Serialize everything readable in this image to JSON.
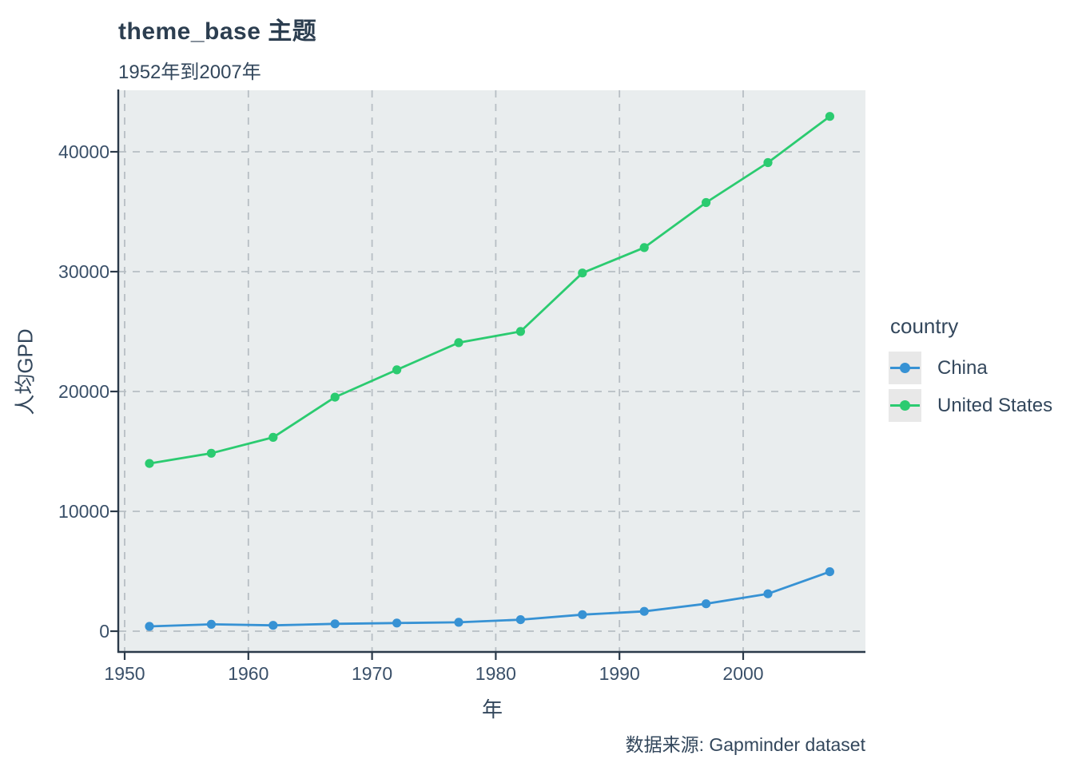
{
  "title": "theme_base 主题",
  "subtitle": "1952年到2007年",
  "caption": "数据来源: Gapminder dataset",
  "axes": {
    "x_label": "年",
    "y_label": "人均GPD"
  },
  "legend": {
    "title": "country",
    "items": [
      {
        "label": "China",
        "color": "#3792D4"
      },
      {
        "label": "United States",
        "color": "#2BCB70"
      }
    ]
  },
  "colors": {
    "title_text": "#2C3E50",
    "body_text": "#33475C",
    "tick_text": "#3A5069",
    "axis_line": "#2B3A4A",
    "gridline": "#B7BEC4",
    "panel_background": "#E9EDEE",
    "legend_key_background": "#E8E8E8",
    "china_series": "#3792D4",
    "us_series": "#2BCB70"
  },
  "chart_data": {
    "type": "line",
    "title": "theme_base 主题",
    "subtitle": "1952年到2007年",
    "caption": "数据来源: Gapminder dataset",
    "xlabel": "年",
    "ylabel": "人均GPD",
    "x": [
      1952,
      1957,
      1962,
      1967,
      1972,
      1977,
      1982,
      1987,
      1992,
      1997,
      2002,
      2007
    ],
    "series": [
      {
        "name": "China",
        "color": "#3792D4",
        "values": [
          400,
          576,
          488,
          613,
          677,
          741,
          962,
          1379,
          1656,
          2289,
          3119,
          4959
        ]
      },
      {
        "name": "United States",
        "color": "#2BCB70",
        "values": [
          13990,
          14847,
          16173,
          19530,
          21806,
          24073,
          25010,
          29884,
          32004,
          35767,
          39097,
          42952
        ]
      }
    ],
    "x_ticks": [
      1950,
      1960,
      1970,
      1980,
      1990,
      2000
    ],
    "y_ticks": [
      0,
      10000,
      20000,
      30000,
      40000
    ],
    "xlim": [
      1949.5,
      2009.9
    ],
    "ylim": [
      -1800,
      45300
    ],
    "grid": "dashed-major",
    "legend_position": "right",
    "marker": "circle"
  }
}
